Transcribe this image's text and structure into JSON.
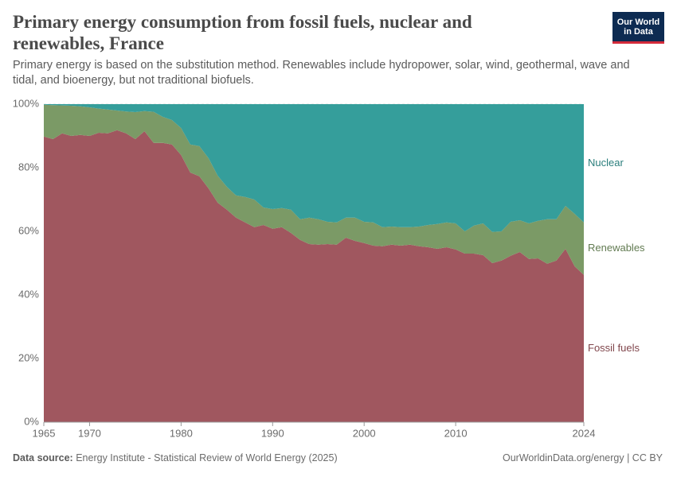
{
  "chart_data": {
    "type": "stacked-area",
    "title": "Primary energy consumption from fossil fuels, nuclear and renewables, France",
    "subtitle": "Primary energy is based on the substitution method. Renewables include hydropower, solar, wind, geothermal, wave and tidal, and bioenergy, but not traditional biofuels.",
    "logo": [
      "Our World",
      "in Data"
    ],
    "source_label": "Data source:",
    "source": "Energy Institute - Statistical Review of World Energy (2025)",
    "credit": "OurWorldinData.org/energy | CC BY",
    "x": [
      1965,
      1966,
      1967,
      1968,
      1969,
      1970,
      1971,
      1972,
      1973,
      1974,
      1975,
      1976,
      1977,
      1978,
      1979,
      1980,
      1981,
      1982,
      1983,
      1984,
      1985,
      1986,
      1987,
      1988,
      1989,
      1990,
      1991,
      1992,
      1993,
      1994,
      1995,
      1996,
      1997,
      1998,
      1999,
      2000,
      2001,
      2002,
      2003,
      2004,
      2005,
      2006,
      2007,
      2008,
      2009,
      2010,
      2011,
      2012,
      2013,
      2014,
      2015,
      2016,
      2017,
      2018,
      2019,
      2020,
      2021,
      2022,
      2023,
      2024
    ],
    "xlim": [
      1965,
      2024
    ],
    "xticks": [
      1965,
      1970,
      1980,
      1990,
      2000,
      2010,
      2024
    ],
    "ylim": [
      0,
      100
    ],
    "yticks": [
      {
        "value": 0,
        "label": "0%"
      },
      {
        "value": 20,
        "label": "20%"
      },
      {
        "value": 40,
        "label": "40%"
      },
      {
        "value": 60,
        "label": "60%"
      },
      {
        "value": 80,
        "label": "80%"
      },
      {
        "value": 100,
        "label": "100%"
      }
    ],
    "grid": true,
    "series": [
      {
        "name": "Fossil fuels",
        "color": "#a0575f",
        "values": [
          89.8,
          89.0,
          90.8,
          90.0,
          90.3,
          90.0,
          91.0,
          90.8,
          91.8,
          90.8,
          89.0,
          91.5,
          87.8,
          87.8,
          87.3,
          84.0,
          78.5,
          77.3,
          73.5,
          69.0,
          66.8,
          64.3,
          62.8,
          61.3,
          62.0,
          60.8,
          61.3,
          59.5,
          57.3,
          56.0,
          55.8,
          56.0,
          55.8,
          58.0,
          57.0,
          56.3,
          55.5,
          55.3,
          55.8,
          55.5,
          55.8,
          55.3,
          55.0,
          54.5,
          55.0,
          54.3,
          53.0,
          53.0,
          52.5,
          50.0,
          50.8,
          52.3,
          53.5,
          51.3,
          51.5,
          49.8,
          50.8,
          54.5,
          49.0,
          46.3
        ]
      },
      {
        "name": "Renewables",
        "color": "#7b9a66",
        "values": [
          10.0,
          10.7,
          8.8,
          9.5,
          9.0,
          9.0,
          7.6,
          7.5,
          6.2,
          6.9,
          8.5,
          6.3,
          9.8,
          8.2,
          7.7,
          8.5,
          8.8,
          9.5,
          9.5,
          8.5,
          7.2,
          7.0,
          8.0,
          8.7,
          5.5,
          6.2,
          6.0,
          7.3,
          6.5,
          8.3,
          8.0,
          7.0,
          7.0,
          6.3,
          7.3,
          6.7,
          7.3,
          6.0,
          5.7,
          5.8,
          5.5,
          6.2,
          7.0,
          7.8,
          7.8,
          8.2,
          7.0,
          8.8,
          10.0,
          9.8,
          9.2,
          10.7,
          10.0,
          11.2,
          11.8,
          14.0,
          13.0,
          13.5,
          16.5,
          16.5
        ]
      },
      {
        "name": "Nuclear",
        "color": "#359e9b",
        "values": [
          0.2,
          0.3,
          0.4,
          0.5,
          0.7,
          1.0,
          1.4,
          1.7,
          2.0,
          2.3,
          2.5,
          2.2,
          2.4,
          4.0,
          5.0,
          7.5,
          12.7,
          13.2,
          17.0,
          22.5,
          26.0,
          28.7,
          29.2,
          30.0,
          32.5,
          33.0,
          32.7,
          33.2,
          36.2,
          35.7,
          36.2,
          37.0,
          37.2,
          35.7,
          35.7,
          37.0,
          37.2,
          38.7,
          38.5,
          38.7,
          38.7,
          38.5,
          38.0,
          37.7,
          37.2,
          37.5,
          40.0,
          38.2,
          37.5,
          40.2,
          40.0,
          37.0,
          36.5,
          37.5,
          36.7,
          36.2,
          36.2,
          32.0,
          34.5,
          37.2
        ]
      }
    ]
  }
}
